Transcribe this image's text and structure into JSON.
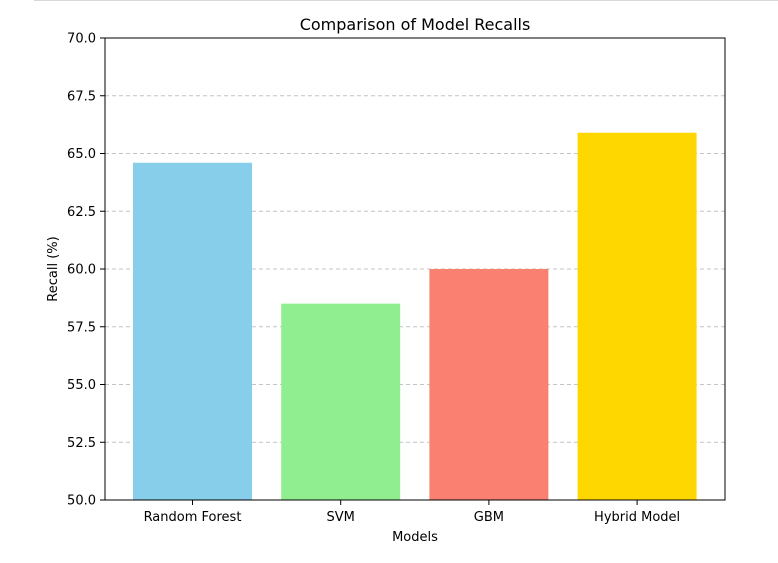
{
  "chart_data": {
    "type": "bar",
    "title": "Comparison of Model Recalls",
    "xlabel": "Models",
    "ylabel": "Recall (%)",
    "categories": [
      "Random Forest",
      "SVM",
      "GBM",
      "Hybrid Model"
    ],
    "values": [
      64.6,
      58.5,
      60.0,
      65.9
    ],
    "colors": [
      "#87ceeb",
      "#90ee90",
      "#fa8072",
      "#ffd700"
    ],
    "ylim": [
      50,
      70
    ],
    "yticks": [
      "50.0",
      "52.5",
      "55.0",
      "57.5",
      "60.0",
      "62.5",
      "65.0",
      "67.5",
      "70.0"
    ],
    "grid": "y-dashed",
    "legend": "none"
  }
}
